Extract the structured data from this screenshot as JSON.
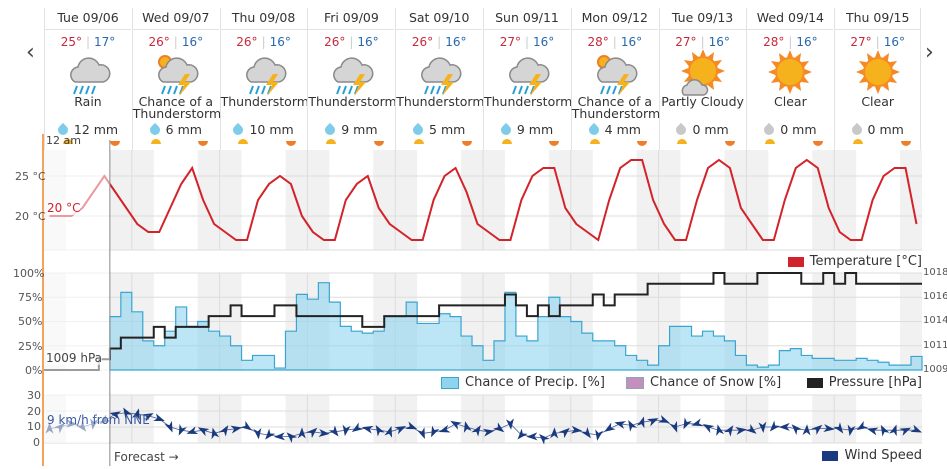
{
  "nav": {
    "prev": "‹",
    "next": "›"
  },
  "days": [
    {
      "label": "Tue 09/06",
      "hi": "25°",
      "lo": "17°",
      "icon": "rain",
      "condition": "Rain",
      "precip": "12 mm",
      "wet": true
    },
    {
      "label": "Wed 09/07",
      "hi": "26°",
      "lo": "16°",
      "icon": "chance-tstorm",
      "condition": "Chance of a Thunderstorm",
      "precip": "6 mm",
      "wet": true
    },
    {
      "label": "Thu 09/08",
      "hi": "26°",
      "lo": "16°",
      "icon": "tstorm",
      "condition": "Thunderstorm",
      "precip": "10 mm",
      "wet": true
    },
    {
      "label": "Fri 09/09",
      "hi": "26°",
      "lo": "16°",
      "icon": "tstorm",
      "condition": "Thunderstorm",
      "precip": "9 mm",
      "wet": true
    },
    {
      "label": "Sat 09/10",
      "hi": "26°",
      "lo": "16°",
      "icon": "tstorm",
      "condition": "Thunderstorm",
      "precip": "5 mm",
      "wet": true
    },
    {
      "label": "Sun 09/11",
      "hi": "27°",
      "lo": "16°",
      "icon": "tstorm",
      "condition": "Thunderstorm",
      "precip": "9 mm",
      "wet": true
    },
    {
      "label": "Mon 09/12",
      "hi": "28°",
      "lo": "16°",
      "icon": "chance-tstorm",
      "condition": "Chance of a Thunderstorm",
      "precip": "4 mm",
      "wet": true
    },
    {
      "label": "Tue 09/13",
      "hi": "27°",
      "lo": "16°",
      "icon": "partly-cloudy",
      "condition": "Partly Cloudy",
      "precip": "0 mm",
      "wet": false
    },
    {
      "label": "Wed 09/14",
      "hi": "28°",
      "lo": "16°",
      "icon": "clear",
      "condition": "Clear",
      "precip": "0 mm",
      "wet": false
    },
    {
      "label": "Thu 09/15",
      "hi": "27°",
      "lo": "16°",
      "icon": "clear",
      "condition": "Clear",
      "precip": "0 mm",
      "wet": false
    }
  ],
  "labels": {
    "time_start": "12 am",
    "temp_readout": "20 °C",
    "pressure_readout": "1009 hPa",
    "wind_readout": "9 km/h from NNE",
    "forecast": "Forecast →",
    "temp_ticks": [
      "25 °C",
      "20 °C"
    ],
    "pct_ticks": [
      "100%",
      "75%",
      "50%",
      "25%",
      "0%"
    ],
    "hpa_ticks": [
      "1018",
      "1016",
      "1014",
      "1011",
      "1009"
    ],
    "wind_ticks": [
      "30",
      "20",
      "10",
      "0"
    ]
  },
  "legend": {
    "temperature": "Temperature [°C]",
    "precip": "Chance of Precip. [%]",
    "snow": "Chance of Snow [%]",
    "pressure": "Pressure [hPa]",
    "wind": "Wind Speed"
  },
  "colors": {
    "temperature": "#d2232a",
    "precip": "#8fd3ef",
    "precip_line": "#3aa6d0",
    "snow": "#c48fbf",
    "pressure": "#222222",
    "wind": "#1a3a80",
    "now": "#f3a35c"
  },
  "chart_data": {
    "type": "line",
    "step_hours": 3,
    "observed_until_hour": 18,
    "temperature_c": [
      20,
      20,
      20,
      21,
      23,
      25,
      23,
      21,
      19,
      18,
      18,
      21,
      24,
      26,
      22,
      19,
      18,
      17,
      17,
      22,
      24,
      25,
      24,
      20,
      18,
      17,
      17,
      22,
      24,
      25,
      21,
      19,
      18,
      17,
      17,
      22,
      25,
      26,
      23,
      19,
      18,
      17,
      17,
      22,
      25,
      26,
      26,
      21,
      19,
      18,
      17,
      22,
      26,
      27,
      27,
      22,
      19,
      17,
      17,
      22,
      26,
      27,
      26,
      21,
      19,
      17,
      17,
      22,
      26,
      27,
      26,
      21,
      18,
      17,
      17,
      22,
      25,
      26,
      26,
      19
    ],
    "precip_pct": [
      0,
      0,
      0,
      0,
      0,
      0,
      55,
      80,
      60,
      30,
      25,
      40,
      65,
      45,
      50,
      40,
      35,
      25,
      10,
      15,
      15,
      2,
      40,
      78,
      73,
      90,
      70,
      45,
      40,
      38,
      40,
      55,
      55,
      70,
      48,
      48,
      58,
      55,
      35,
      25,
      10,
      30,
      80,
      35,
      30,
      55,
      75,
      55,
      50,
      38,
      30,
      30,
      25,
      15,
      10,
      5,
      25,
      45,
      45,
      35,
      40,
      35,
      30,
      15,
      5,
      3,
      5,
      20,
      22,
      15,
      12,
      12,
      10,
      10,
      12,
      10,
      8,
      5,
      5,
      14
    ],
    "pressure_hpa": [
      1009,
      1009,
      1009,
      1009,
      1009,
      1010,
      1011,
      1012,
      1012,
      1012,
      1013,
      1012,
      1013,
      1013,
      1013,
      1014,
      1014,
      1015,
      1014,
      1014,
      1014,
      1015,
      1015,
      1014,
      1014,
      1014,
      1014,
      1014,
      1014,
      1013,
      1013,
      1014,
      1014,
      1014,
      1014,
      1014,
      1015,
      1015,
      1015,
      1015,
      1015,
      1015,
      1016,
      1015,
      1014,
      1015,
      1014,
      1015,
      1015,
      1015,
      1016,
      1015,
      1016,
      1016,
      1016,
      1017,
      1017,
      1017,
      1017,
      1017,
      1017,
      1018,
      1017,
      1017,
      1017,
      1018,
      1018,
      1018,
      1018,
      1017,
      1017,
      1018,
      1017,
      1018,
      1017,
      1017,
      1017,
      1017,
      1017,
      1017
    ],
    "wind_kmh": [
      9,
      10,
      12,
      10,
      12,
      14,
      18,
      19,
      18,
      17,
      15,
      10,
      8,
      7,
      8,
      6,
      8,
      9,
      10,
      6,
      5,
      4,
      4,
      6,
      7,
      6,
      7,
      8,
      9,
      9,
      8,
      7,
      9,
      10,
      6,
      7,
      8,
      12,
      10,
      8,
      7,
      9,
      12,
      5,
      4,
      3,
      6,
      7,
      8,
      6,
      5,
      9,
      12,
      11,
      13,
      14,
      14,
      10,
      12,
      12,
      10,
      8,
      8,
      8,
      8,
      10,
      10,
      10,
      9,
      8,
      9,
      9,
      9,
      8,
      10,
      8,
      8,
      8,
      8,
      8
    ],
    "temp_range": [
      15,
      29
    ],
    "precip_range": [
      0,
      100
    ],
    "pressure_range": [
      1009,
      1018
    ],
    "wind_range": [
      0,
      30
    ]
  }
}
